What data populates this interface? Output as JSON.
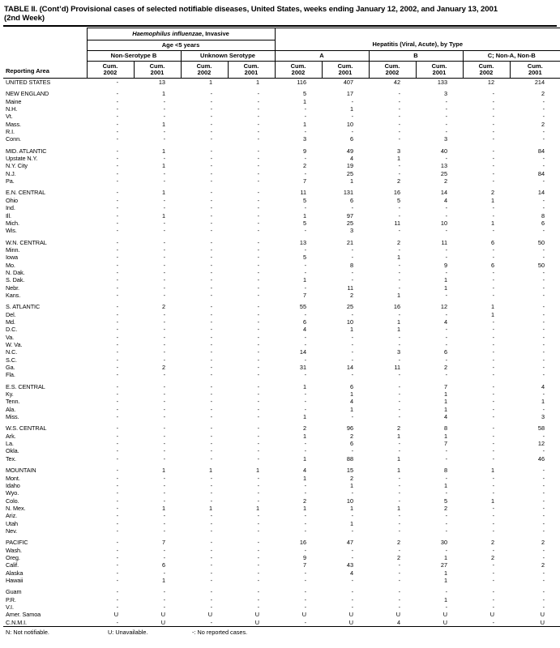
{
  "title": {
    "line1": "TABLE II. (Cont’d) Provisional cases of selected notifiable diseases, United States, weeks ending January 12, 2002, and January 13, 2001",
    "line2": "(2nd Week)"
  },
  "header": {
    "reporting_area": "Reporting Area",
    "haemophilus_italic": "Haemophilus influenzae",
    "haemophilus_rest": ", Invasive",
    "age_group": "Age <5 years",
    "hepatitis": "Hepatitis (Viral, Acute), by Type",
    "subgroups": [
      "Non-Serotype B",
      "Unknown Serotype",
      "A",
      "B",
      "C; Non-A, Non-B"
    ],
    "columns": [
      {
        "cum": "Cum.",
        "year": "2002"
      },
      {
        "cum": "Cum.",
        "year": "2001"
      },
      {
        "cum": "Cum.",
        "year": "2002"
      },
      {
        "cum": "Cum.",
        "year": "2001"
      },
      {
        "cum": "Cum.",
        "year": "2002"
      },
      {
        "cum": "Cum.",
        "year": "2001"
      },
      {
        "cum": "Cum.",
        "year": "2002"
      },
      {
        "cum": "Cum.",
        "year": "2001"
      },
      {
        "cum": "Cum.",
        "year": "2002"
      },
      {
        "cum": "Cum.",
        "year": "2001"
      }
    ]
  },
  "rows": [
    {
      "a": "UNITED STATES",
      "v": [
        "-",
        "13",
        "1",
        "1",
        "116",
        "407",
        "42",
        "133",
        "12",
        "214"
      ]
    },
    {
      "a": "NEW ENGLAND",
      "gap": true,
      "v": [
        "-",
        "1",
        "-",
        "-",
        "5",
        "17",
        "-",
        "3",
        "-",
        "2"
      ]
    },
    {
      "a": "Maine",
      "v": [
        "-",
        "-",
        "-",
        "-",
        "1",
        "-",
        "-",
        "-",
        "-",
        "-"
      ]
    },
    {
      "a": "N.H.",
      "v": [
        "-",
        "-",
        "-",
        "-",
        "-",
        "1",
        "-",
        "-",
        "-",
        "-"
      ]
    },
    {
      "a": "Vt.",
      "v": [
        "-",
        "-",
        "-",
        "-",
        "-",
        "-",
        "-",
        "-",
        "-",
        "-"
      ]
    },
    {
      "a": "Mass.",
      "v": [
        "-",
        "1",
        "-",
        "-",
        "1",
        "10",
        "-",
        "-",
        "-",
        "2"
      ]
    },
    {
      "a": "R.I.",
      "v": [
        "-",
        "-",
        "-",
        "-",
        "-",
        "-",
        "-",
        "-",
        "-",
        "-"
      ]
    },
    {
      "a": "Conn.",
      "v": [
        "-",
        "-",
        "-",
        "-",
        "3",
        "6",
        "-",
        "3",
        "-",
        "-"
      ]
    },
    {
      "a": "MID. ATLANTIC",
      "gap": true,
      "v": [
        "-",
        "1",
        "-",
        "-",
        "9",
        "49",
        "3",
        "40",
        "-",
        "84"
      ]
    },
    {
      "a": "Upstate N.Y.",
      "v": [
        "-",
        "-",
        "-",
        "-",
        "-",
        "4",
        "1",
        "-",
        "-",
        "-"
      ]
    },
    {
      "a": "N.Y. City",
      "v": [
        "-",
        "1",
        "-",
        "-",
        "2",
        "19",
        "-",
        "13",
        "-",
        "-"
      ]
    },
    {
      "a": "N.J.",
      "v": [
        "-",
        "-",
        "-",
        "-",
        "-",
        "25",
        "-",
        "25",
        "-",
        "84"
      ]
    },
    {
      "a": "Pa.",
      "v": [
        "-",
        "-",
        "-",
        "-",
        "7",
        "1",
        "2",
        "2",
        "-",
        "-"
      ]
    },
    {
      "a": "E.N. CENTRAL",
      "gap": true,
      "v": [
        "-",
        "1",
        "-",
        "-",
        "11",
        "131",
        "16",
        "14",
        "2",
        "14"
      ]
    },
    {
      "a": "Ohio",
      "v": [
        "-",
        "-",
        "-",
        "-",
        "5",
        "6",
        "5",
        "4",
        "1",
        "-"
      ]
    },
    {
      "a": "Ind.",
      "v": [
        "-",
        "-",
        "-",
        "-",
        "-",
        "-",
        "-",
        "-",
        "-",
        "-"
      ]
    },
    {
      "a": "Ill.",
      "v": [
        "-",
        "1",
        "-",
        "-",
        "1",
        "97",
        "-",
        "-",
        "-",
        "8"
      ]
    },
    {
      "a": "Mich.",
      "v": [
        "-",
        "-",
        "-",
        "-",
        "5",
        "25",
        "11",
        "10",
        "1",
        "6"
      ]
    },
    {
      "a": "Wis.",
      "v": [
        "-",
        "-",
        "-",
        "-",
        "-",
        "3",
        "-",
        "-",
        "-",
        "-"
      ]
    },
    {
      "a": "W.N. CENTRAL",
      "gap": true,
      "v": [
        "-",
        "-",
        "-",
        "-",
        "13",
        "21",
        "2",
        "11",
        "6",
        "50"
      ]
    },
    {
      "a": "Minn.",
      "v": [
        "-",
        "-",
        "-",
        "-",
        "-",
        "-",
        "-",
        "-",
        "-",
        "-"
      ]
    },
    {
      "a": "Iowa",
      "v": [
        "-",
        "-",
        "-",
        "-",
        "5",
        "-",
        "1",
        "-",
        "-",
        "-"
      ]
    },
    {
      "a": "Mo.",
      "v": [
        "-",
        "-",
        "-",
        "-",
        "-",
        "8",
        "-",
        "9",
        "6",
        "50"
      ]
    },
    {
      "a": "N. Dak.",
      "v": [
        "-",
        "-",
        "-",
        "-",
        "-",
        "-",
        "-",
        "-",
        "-",
        "-"
      ]
    },
    {
      "a": "S. Dak.",
      "v": [
        "-",
        "-",
        "-",
        "-",
        "1",
        "-",
        "-",
        "1",
        "-",
        "-"
      ]
    },
    {
      "a": "Nebr.",
      "v": [
        "-",
        "-",
        "-",
        "-",
        "-",
        "11",
        "-",
        "1",
        "-",
        "-"
      ]
    },
    {
      "a": "Kans.",
      "v": [
        "-",
        "-",
        "-",
        "-",
        "7",
        "2",
        "1",
        "-",
        "-",
        "-"
      ]
    },
    {
      "a": "S. ATLANTIC",
      "gap": true,
      "v": [
        "-",
        "2",
        "-",
        "-",
        "55",
        "25",
        "16",
        "12",
        "1",
        "-"
      ]
    },
    {
      "a": "Del.",
      "v": [
        "-",
        "-",
        "-",
        "-",
        "-",
        "-",
        "-",
        "-",
        "1",
        "-"
      ]
    },
    {
      "a": "Md.",
      "v": [
        "-",
        "-",
        "-",
        "-",
        "6",
        "10",
        "1",
        "4",
        "-",
        "-"
      ]
    },
    {
      "a": "D.C.",
      "v": [
        "-",
        "-",
        "-",
        "-",
        "4",
        "1",
        "1",
        "-",
        "-",
        "-"
      ]
    },
    {
      "a": "Va.",
      "v": [
        "-",
        "-",
        "-",
        "-",
        "-",
        "-",
        "-",
        "-",
        "-",
        "-"
      ]
    },
    {
      "a": "W. Va.",
      "v": [
        "-",
        "-",
        "-",
        "-",
        "-",
        "-",
        "-",
        "-",
        "-",
        "-"
      ]
    },
    {
      "a": "N.C.",
      "v": [
        "-",
        "-",
        "-",
        "-",
        "14",
        "-",
        "3",
        "6",
        "-",
        "-"
      ]
    },
    {
      "a": "S.C.",
      "v": [
        "-",
        "-",
        "-",
        "-",
        "-",
        "-",
        "-",
        "-",
        "-",
        "-"
      ]
    },
    {
      "a": "Ga.",
      "v": [
        "-",
        "2",
        "-",
        "-",
        "31",
        "14",
        "11",
        "2",
        "-",
        "-"
      ]
    },
    {
      "a": "Fla.",
      "v": [
        "-",
        "-",
        "-",
        "-",
        "-",
        "-",
        "-",
        "-",
        "-",
        "-"
      ]
    },
    {
      "a": "E.S. CENTRAL",
      "gap": true,
      "v": [
        "-",
        "-",
        "-",
        "-",
        "1",
        "6",
        "-",
        "7",
        "-",
        "4"
      ]
    },
    {
      "a": "Ky.",
      "v": [
        "-",
        "-",
        "-",
        "-",
        "-",
        "1",
        "-",
        "1",
        "-",
        "-"
      ]
    },
    {
      "a": "Tenn.",
      "v": [
        "-",
        "-",
        "-",
        "-",
        "-",
        "4",
        "-",
        "1",
        "-",
        "1"
      ]
    },
    {
      "a": "Ala.",
      "v": [
        "-",
        "-",
        "-",
        "-",
        "-",
        "1",
        "-",
        "1",
        "-",
        "-"
      ]
    },
    {
      "a": "Miss.",
      "v": [
        "-",
        "-",
        "-",
        "-",
        "1",
        "-",
        "-",
        "4",
        "-",
        "3"
      ]
    },
    {
      "a": "W.S. CENTRAL",
      "gap": true,
      "v": [
        "-",
        "-",
        "-",
        "-",
        "2",
        "96",
        "2",
        "8",
        "-",
        "58"
      ]
    },
    {
      "a": "Ark.",
      "v": [
        "-",
        "-",
        "-",
        "-",
        "1",
        "2",
        "1",
        "1",
        "-",
        "-"
      ]
    },
    {
      "a": "La.",
      "v": [
        "-",
        "-",
        "-",
        "-",
        "-",
        "6",
        "-",
        "7",
        "-",
        "12"
      ]
    },
    {
      "a": "Okla.",
      "v": [
        "-",
        "-",
        "-",
        "-",
        "-",
        "-",
        "-",
        "-",
        "-",
        "-"
      ]
    },
    {
      "a": "Tex.",
      "v": [
        "-",
        "-",
        "-",
        "-",
        "1",
        "88",
        "1",
        "-",
        "-",
        "46"
      ]
    },
    {
      "a": "MOUNTAIN",
      "gap": true,
      "v": [
        "-",
        "1",
        "1",
        "1",
        "4",
        "15",
        "1",
        "8",
        "1",
        "-"
      ]
    },
    {
      "a": "Mont.",
      "v": [
        "-",
        "-",
        "-",
        "-",
        "1",
        "2",
        "-",
        "-",
        "-",
        "-"
      ]
    },
    {
      "a": "Idaho",
      "v": [
        "-",
        "-",
        "-",
        "-",
        "-",
        "1",
        "-",
        "1",
        "-",
        "-"
      ]
    },
    {
      "a": "Wyo.",
      "v": [
        "-",
        "-",
        "-",
        "-",
        "-",
        "-",
        "-",
        "-",
        "-",
        "-"
      ]
    },
    {
      "a": "Colo.",
      "v": [
        "-",
        "-",
        "-",
        "-",
        "2",
        "10",
        "-",
        "5",
        "1",
        "-"
      ]
    },
    {
      "a": "N. Mex.",
      "v": [
        "-",
        "1",
        "1",
        "1",
        "1",
        "1",
        "1",
        "2",
        "-",
        "-"
      ]
    },
    {
      "a": "Ariz.",
      "v": [
        "-",
        "-",
        "-",
        "-",
        "-",
        "-",
        "-",
        "-",
        "-",
        "-"
      ]
    },
    {
      "a": "Utah",
      "v": [
        "-",
        "-",
        "-",
        "-",
        "-",
        "1",
        "-",
        "-",
        "-",
        "-"
      ]
    },
    {
      "a": "Nev.",
      "v": [
        "-",
        "-",
        "-",
        "-",
        "-",
        "-",
        "-",
        "-",
        "-",
        "-"
      ]
    },
    {
      "a": "PACIFIC",
      "gap": true,
      "v": [
        "-",
        "7",
        "-",
        "-",
        "16",
        "47",
        "2",
        "30",
        "2",
        "2"
      ]
    },
    {
      "a": "Wash.",
      "v": [
        "-",
        "-",
        "-",
        "-",
        "-",
        "-",
        "-",
        "-",
        "-",
        "-"
      ]
    },
    {
      "a": "Oreg.",
      "v": [
        "-",
        "-",
        "-",
        "-",
        "9",
        "-",
        "2",
        "1",
        "2",
        "-"
      ]
    },
    {
      "a": "Calif.",
      "v": [
        "-",
        "6",
        "-",
        "-",
        "7",
        "43",
        "-",
        "27",
        "-",
        "2"
      ]
    },
    {
      "a": "Alaska",
      "v": [
        "-",
        "-",
        "-",
        "-",
        "-",
        "4",
        "-",
        "1",
        "-",
        "-"
      ]
    },
    {
      "a": "Hawaii",
      "v": [
        "-",
        "1",
        "-",
        "-",
        "-",
        "-",
        "-",
        "1",
        "-",
        "-"
      ]
    },
    {
      "a": "Guam",
      "gap": true,
      "v": [
        "-",
        "-",
        "-",
        "-",
        "-",
        "-",
        "-",
        "-",
        "-",
        "-"
      ]
    },
    {
      "a": "P.R.",
      "v": [
        "-",
        "-",
        "-",
        "-",
        "-",
        "-",
        "-",
        "1",
        "-",
        "-"
      ]
    },
    {
      "a": "V.I.",
      "v": [
        "-",
        "-",
        "-",
        "-",
        "-",
        "-",
        "-",
        "-",
        "-",
        "-"
      ]
    },
    {
      "a": "Amer. Samoa",
      "v": [
        "U",
        "U",
        "U",
        "U",
        "U",
        "U",
        "U",
        "U",
        "U",
        "U"
      ]
    },
    {
      "a": "C.N.M.I.",
      "v": [
        "-",
        "U",
        "-",
        "U",
        "-",
        "U",
        "4",
        "U",
        "-",
        "U"
      ]
    }
  ],
  "footer": {
    "n": "N: Not notifiable.",
    "u": "U: Unavailable.",
    "dash": "-: No reported cases."
  },
  "colors": {
    "text": "#000000",
    "background": "#ffffff",
    "rule": "#000000"
  }
}
